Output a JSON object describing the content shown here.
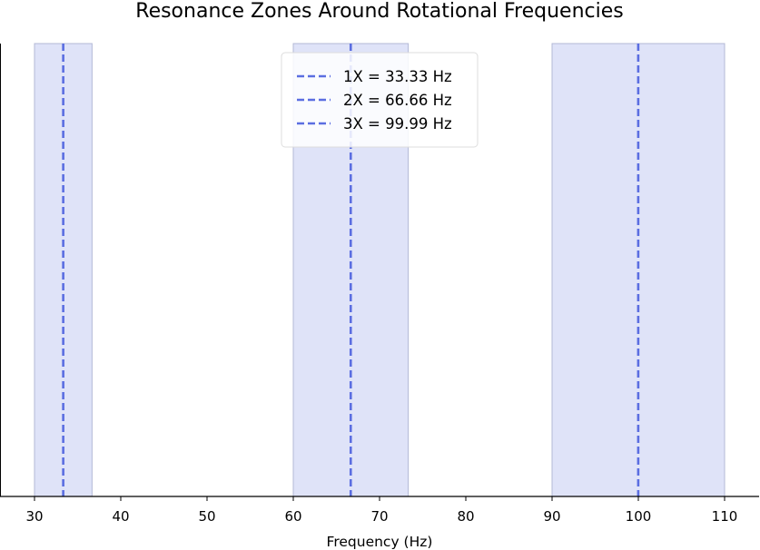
{
  "chart_data": {
    "type": "line",
    "title": "Resonance Zones Around Rotational Frequencies",
    "xlabel": "Frequency (Hz)",
    "ylabel": "",
    "xlim": [
      26,
      114
    ],
    "xticks": [
      30,
      40,
      50,
      60,
      70,
      80,
      90,
      100,
      110
    ],
    "grid": false,
    "legend_position": "top-center",
    "series": [
      {
        "name": "1X = 33.33 Hz",
        "x": 33.33,
        "band": [
          30,
          36.67
        ],
        "color": "#5b6ee1"
      },
      {
        "name": "2X = 66.66 Hz",
        "x": 66.66,
        "band": [
          60,
          73.33
        ],
        "color": "#5b6ee1"
      },
      {
        "name": "3X = 99.99 Hz",
        "x": 99.99,
        "band": [
          90,
          110
        ],
        "color": "#5b6ee1"
      }
    ],
    "band_fill": "#dfe3f8",
    "band_edge": "#b3b8d6"
  }
}
